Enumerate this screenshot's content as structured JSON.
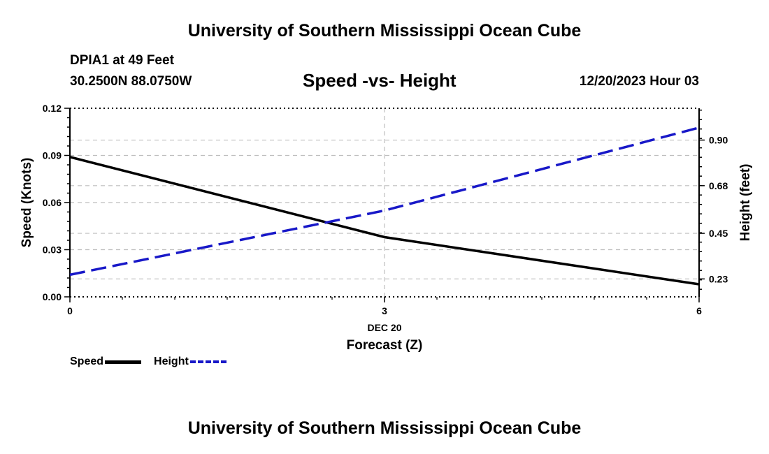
{
  "header": {
    "title_top": "University of Southern Mississippi Ocean Cube",
    "title_bottom": "University of Southern Mississippi Ocean Cube",
    "station": "DPIA1 at 49 Feet",
    "coords": "30.2500N  88.0750W",
    "chart_title": "Speed -vs- Height",
    "datetime": "12/20/2023 Hour 03"
  },
  "colors": {
    "speed": "#000000",
    "height": "#1818c8",
    "grid": "#bdbdbd"
  },
  "legend": {
    "speed_label": "Speed",
    "height_label": "Height"
  },
  "chart_data": {
    "type": "line",
    "title": "Speed -vs- Height",
    "xlabel": "Forecast (Z)",
    "xsublabel": "DEC 20",
    "ylabel": "Speed (Knots)",
    "y2label": "Height (feet)",
    "xlim": [
      0,
      6
    ],
    "ylim": [
      0,
      0.12
    ],
    "y2lim": [
      0.1435,
      1.0535
    ],
    "xticks": [
      0,
      3,
      6
    ],
    "xtick_labels": [
      "0",
      "3",
      "6"
    ],
    "yticks": [
      0,
      0.03,
      0.06,
      0.09,
      0.12
    ],
    "ytick_labels": [
      "0.00",
      "0.03",
      "0.06",
      "0.09",
      "0.12"
    ],
    "y2ticks": [
      0.23,
      0.45,
      0.68,
      0.9
    ],
    "y2tick_labels": [
      "0.23",
      "0.45",
      "0.68",
      "0.90"
    ],
    "grid": true,
    "series": [
      {
        "name": "Speed",
        "axis": "left",
        "style": "solid",
        "x": [
          0,
          3,
          6
        ],
        "values": [
          0.089,
          0.038,
          0.008
        ]
      },
      {
        "name": "Height",
        "axis": "right",
        "style": "dashed",
        "x": [
          0,
          3,
          6
        ],
        "values": [
          0.25,
          0.56,
          0.96
        ]
      }
    ]
  }
}
